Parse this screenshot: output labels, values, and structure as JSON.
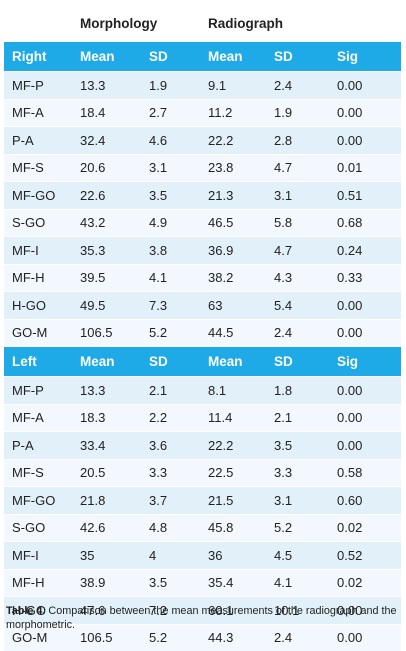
{
  "table": {
    "group_headers": {
      "morphology": "Morphology",
      "radiograph": "Radiograph"
    },
    "sections": [
      {
        "header": [
          "Right",
          "Mean",
          "SD",
          "Mean",
          "SD",
          "Sig"
        ],
        "rows": [
          [
            "MF-P",
            "13.3",
            "1.9",
            "9.1",
            "2.4",
            "0.00"
          ],
          [
            "MF-A",
            "18.4",
            "2.7",
            "11.2",
            "1.9",
            "0.00"
          ],
          [
            "P-A",
            "32.4",
            "4.6",
            "22.2",
            "2.8",
            "0.00"
          ],
          [
            "MF-S",
            "20.6",
            "3.1",
            "23.8",
            "4.7",
            "0.01"
          ],
          [
            "MF-GO",
            "22.6",
            "3.5",
            "21.3",
            "3.1",
            "0.51"
          ],
          [
            "S-GO",
            "43.2",
            "4.9",
            "46.5",
            "5.8",
            "0.68"
          ],
          [
            "MF-I",
            "35.3",
            "3.8",
            "36.9",
            "4.7",
            "0.24"
          ],
          [
            "MF-H",
            "39.5",
            "4.1",
            "38.2",
            "4.3",
            "0.33"
          ],
          [
            "H-GO",
            "49.5",
            "7.3",
            "63",
            "5.4",
            "0.00"
          ],
          [
            "GO-M",
            "106.5",
            "5.2",
            "44.5",
            "2.4",
            "0.00"
          ]
        ]
      },
      {
        "header": [
          "Left",
          "Mean",
          "SD",
          "Mean",
          "SD",
          "Sig"
        ],
        "rows": [
          [
            "MF-P",
            "13.3",
            "2.1",
            "8.1",
            "1.8",
            "0.00"
          ],
          [
            "MF-A",
            "18.3",
            "2.2",
            "11.4",
            "2.1",
            "0.00"
          ],
          [
            "P-A",
            "33.4",
            "3.6",
            "22.2",
            "3.5",
            "0.00"
          ],
          [
            "MF-S",
            "20.5",
            "3.3",
            "22.5",
            "3.3",
            "0.58"
          ],
          [
            "MF-GO",
            "21.8",
            "3.7",
            "21.5",
            "3.1",
            "0.60"
          ],
          [
            "S-GO",
            "42.6",
            "4.8",
            "45.8",
            "5.2",
            "0.02"
          ],
          [
            "MF-I",
            "35",
            "4",
            "36",
            "4.5",
            "0.52"
          ],
          [
            "MF-H",
            "38.9",
            "3.5",
            "35.4",
            "4.1",
            "0.02"
          ],
          [
            "H-GO",
            "47.6",
            "7.2",
            "60.1",
            "10.1",
            "0.00"
          ],
          [
            "GO-M",
            "106.5",
            "5.2",
            "44.3",
            "2.4",
            "0.00"
          ]
        ]
      }
    ]
  },
  "caption": {
    "label": "Table 4.",
    "text": " Comparison between the mean measurements of the radiograph and the morphometric."
  },
  "colors": {
    "header_bg": "#1eaae7",
    "row_dark": "#e2f0fa",
    "row_light": "#f2f8fd"
  }
}
